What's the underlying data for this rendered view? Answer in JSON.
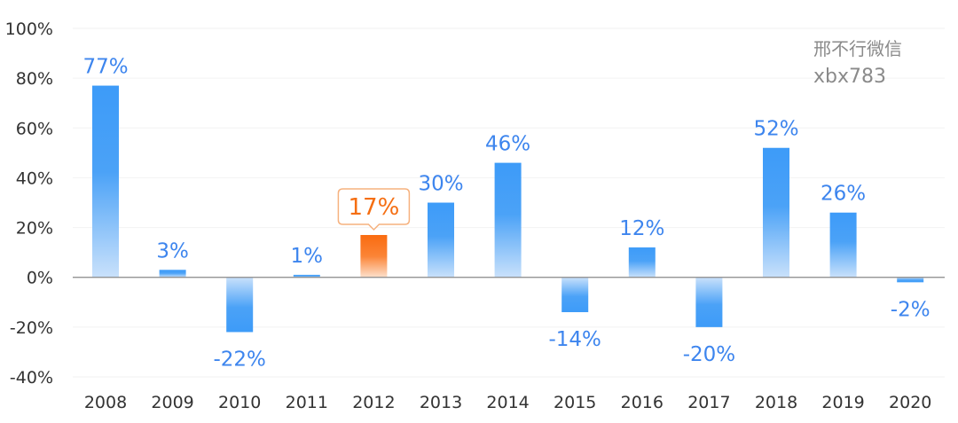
{
  "chart_data": {
    "type": "bar",
    "categories": [
      "2008",
      "2009",
      "2010",
      "2011",
      "2012",
      "2013",
      "2014",
      "2015",
      "2016",
      "2017",
      "2018",
      "2019",
      "2020"
    ],
    "values": [
      77,
      3,
      -22,
      1,
      17,
      30,
      46,
      -14,
      12,
      -20,
      52,
      26,
      -2
    ],
    "data_labels": [
      "77%",
      "3%",
      "-22%",
      "1%",
      "17%",
      "30%",
      "46%",
      "-14%",
      "12%",
      "-20%",
      "52%",
      "26%",
      "-2%"
    ],
    "highlight_category": "2012",
    "ylim": [
      -40,
      100
    ],
    "yticks": [
      -40,
      -20,
      0,
      20,
      40,
      60,
      80,
      100
    ],
    "ytick_labels": [
      "-40%",
      "-20%",
      "0%",
      "20%",
      "40%",
      "60%",
      "80%",
      "100%"
    ],
    "grid": true,
    "colors": {
      "bar": "#3d9bf8",
      "bar_label": "#3d85ee",
      "highlight_bar": "#fa6b10",
      "highlight_label": "#f56e12",
      "highlight_box_border": "#f6b27f",
      "axis": "#888888",
      "grid": "#f2f2f2"
    }
  },
  "watermark": {
    "line1": "邢不行微信",
    "line2": "xbx783"
  }
}
